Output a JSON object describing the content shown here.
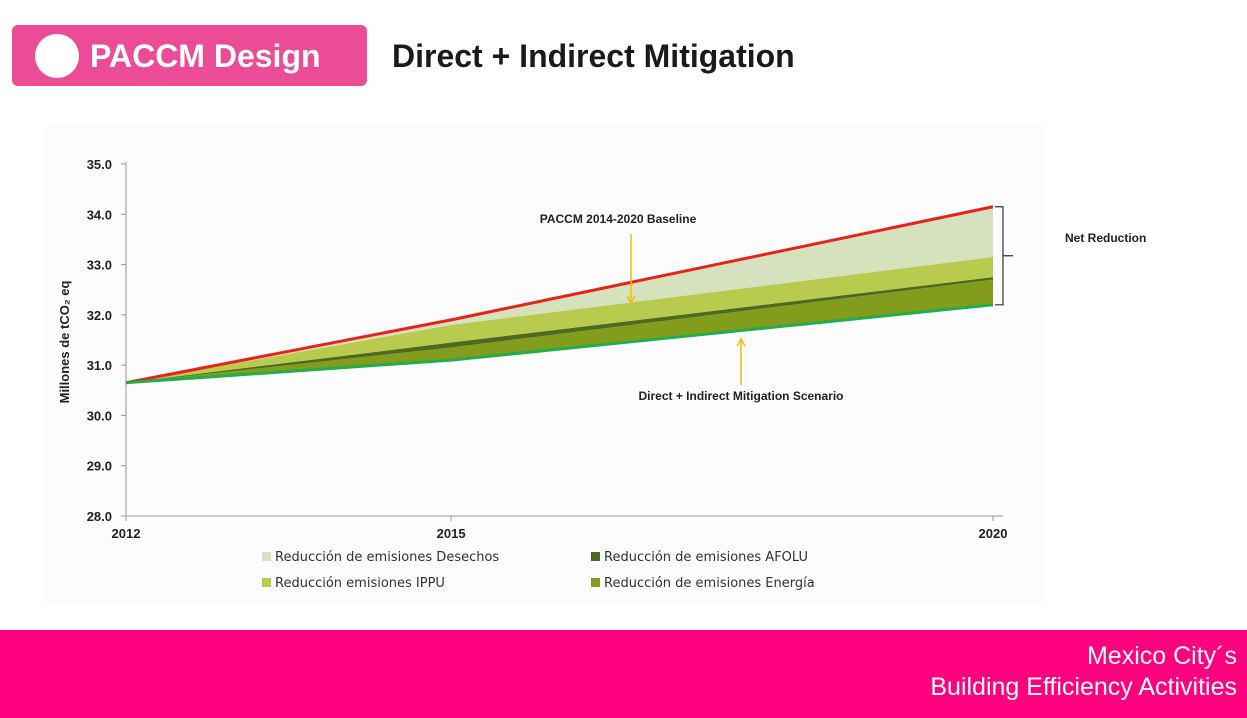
{
  "header": {
    "label": "PACCM Design",
    "title": "Direct + Indirect Mitigation"
  },
  "footer": {
    "line1": "Mexico City´s",
    "line2": "Building Efficiency Activities"
  },
  "colors": {
    "pink_header": "#ec4b96",
    "pink_footer": "#ff007f",
    "baseline": "#e8221b",
    "scenario": "#1fae4a",
    "desechos": "#d6e2bd",
    "ippu": "#b8cb4f",
    "afolu": "#4d6a1f",
    "energia": "#849c1c",
    "arrow": "#f0c000"
  },
  "chart_data": {
    "type": "area",
    "x": [
      2012,
      2015,
      2020
    ],
    "xticks": [
      "2012",
      "2015",
      "2020"
    ],
    "ylabel": "Millones de tCO₂ eq",
    "ylim": [
      28.0,
      35.0
    ],
    "yticks": [
      "28.0",
      "29.0",
      "30.0",
      "31.0",
      "32.0",
      "33.0",
      "34.0",
      "35.0"
    ],
    "baseline": {
      "name": "PACCM  2014-2020  Baseline",
      "values": [
        30.65,
        31.9,
        34.15
      ]
    },
    "scenario": {
      "name": "Direct + Indirect Mitigation  Scenario",
      "values": [
        30.65,
        31.1,
        32.2
      ]
    },
    "stack_boundaries": {
      "energia_top": [
        30.65,
        31.35,
        32.7
      ],
      "afolu_top": [
        30.65,
        31.45,
        32.75
      ],
      "ippu_top": [
        30.65,
        31.8,
        33.15
      ]
    },
    "legend": [
      {
        "label": "Reducción de emisiones Desechos",
        "key": "desechos"
      },
      {
        "label": "Reducción de emisiones AFOLU",
        "key": "afolu"
      },
      {
        "label": "Reducción emisiones IPPU",
        "key": "ippu"
      },
      {
        "label": "Reducción de emisiones Energía",
        "key": "energia"
      }
    ],
    "annotation_net": "Net Reduction"
  }
}
